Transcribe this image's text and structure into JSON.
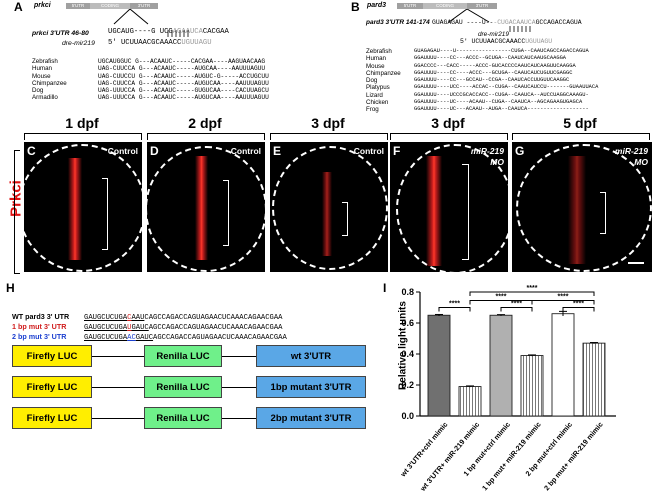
{
  "panel_A": {
    "letter": "A",
    "gene": "prkci",
    "bar_labels": [
      "5'UTR",
      "CODING",
      "3'UTR"
    ],
    "utr_label": "prkci 3'UTR 46-80",
    "utr_seq_1": "UGCAUG----G UCG",
    "utr_seq_2": "ACAAUCA",
    "utr_seq_3": "CACGAA",
    "mir_label": "dre-mir219",
    "mir_seq_1": "5' UCUUAACGCAAACC",
    "mir_seq_2": "UGUUAGU",
    "species": [
      {
        "name": "Zebrafish",
        "seq": "UGCAUGGUC G---ACAAUC-----CACGAA----AAGUAACAAG"
      },
      {
        "name": "Human",
        "seq": "UAG-CUUCCA G---ACAAUC-----AUGCAA----AAUUUAGUU"
      },
      {
        "name": "Mouse",
        "seq": "UAG-CUUCCU G---ACAAUC-----AUGUC-G-----ACCUGCUU"
      },
      {
        "name": "Chimpanzee",
        "seq": "UAG-CUUCCA G---ACAAUC-----AUGUCAA----AAUUUAGUU"
      },
      {
        "name": "Dog",
        "seq": "UAG-UUUCCA G---ACAAUC-----GUGUCAA----CACUUAGCU"
      },
      {
        "name": "Armadillo",
        "seq": "UAG-UUUCCA G---ACAAUC-----AUGUCAA----AAUUUAGUU"
      }
    ]
  },
  "panel_B": {
    "letter": "B",
    "gene": "pard3",
    "bar_labels": [
      "5'UTR",
      "CODING",
      "3'UTR"
    ],
    "utr_label": "pard3 3'UTR 141-174",
    "utr_seq_1": "GUAGAGAU ----U--",
    "utr_seq_2": "-CUGACAAUCA",
    "utr_seq_3": "GCCAGACCAGUA",
    "mir_label": "dre-mir219",
    "mir_seq_1": "5' UCUUAACGCAAACC",
    "mir_seq_2": "UGUUAGU",
    "species": [
      {
        "name": "Zebrafish",
        "seq": "GUAGAGAU----U-----------------CUGA--CAAUCAGCCAGACCAGUA"
      },
      {
        "name": "Human",
        "seq": "GGAUUUU----CC---ACCC--GCUGA--CAAUCAUCAAUGCAAGGA"
      },
      {
        "name": "Mouse",
        "seq": "GGACCCC---CACC-----ACCC-GUCACCCCAAUCAUCAAGUUCAAGGA"
      },
      {
        "name": "Chimpanzee",
        "seq": "GGAUUUU----CC----ACCC---GCUGA--CAAUCAUCUGUUCGAGGC"
      },
      {
        "name": "Dog",
        "seq": "GGAUUUU----CC---GCCAU--CCGA--CAAUCACCUUGUUCAAGGC"
      },
      {
        "name": "Platypus",
        "seq": "GGAUUUU----UCC----ACCAC--CUGA--CAAUCAUCCU-------GUAAUUACA"
      },
      {
        "name": "Lizard",
        "seq": "GGAUUUU----UCCCGCACCACC--CUGA--CAAUCA--AUCCUAGGCAAAGU-"
      },
      {
        "name": "Chicken",
        "seq": "GGAUUUU----UC----ACAAU--CUGA--CAAUCA--AGCAGAAGUGAGCA"
      },
      {
        "name": "Frog",
        "seq": "GGAUUUU----UC---ACAAU--AUGA--CAAUCA-------------------"
      }
    ]
  },
  "panels_row": {
    "row_label": "Prkci",
    "panels": [
      {
        "letter": "C",
        "dpf": "1 dpf",
        "label": "Control"
      },
      {
        "letter": "D",
        "dpf": "2 dpf",
        "label": "Control"
      },
      {
        "letter": "E",
        "dpf": "3 dpf",
        "label": "Control"
      },
      {
        "letter": "F",
        "dpf": "3 dpf",
        "label": "miR-219 MO"
      },
      {
        "letter": "G",
        "dpf": "5 dpf",
        "label": "miR-219 MO"
      }
    ]
  },
  "panel_H": {
    "letter": "H",
    "seq_rows": [
      {
        "label": "WT pard3 3' UTR",
        "seq_a": "GAUGCUCUGA",
        "seq_mut": "C",
        "seq_b": "AAU",
        "seq_rest": "CAGCCAGACCAGUAGAACUCAAACAGAACGAA",
        "color": "#000000"
      },
      {
        "label": "1 bp mut 3' UTR",
        "seq_a": "GAUGCUCUGA",
        "seq_mut": "U",
        "seq_b": "GAUC",
        "seq_rest": "AGCCAGACCAGUAGAACUCAAACAGAACGAA",
        "color": "#d01c1c"
      },
      {
        "label": "2 bp mut 3' UTR",
        "seq_a": "GAUGCUCUGA",
        "seq_mut": "AC",
        "seq_b": "GAUC",
        "seq_rest": "AGCCAGACCAGUAGAACUCAAACAGAACGAA",
        "color": "#1b3fd0"
      }
    ],
    "constructs": [
      {
        "firefly": "Firefly LUC",
        "renilla": "Renilla LUC",
        "utr": "wt 3'UTR"
      },
      {
        "firefly": "Firefly LUC",
        "renilla": "Renilla LUC",
        "utr": "1bp mutant 3'UTR"
      },
      {
        "firefly": "Firefly LUC",
        "renilla": "Renilla LUC",
        "utr": "2bp mutant 3'UTR"
      }
    ]
  },
  "panel_I": {
    "letter": "I",
    "significance": "****"
  },
  "chart_data": {
    "type": "bar",
    "ylabel": "Relative light units",
    "ylim": [
      0,
      0.8
    ],
    "yticks": [
      "0.0",
      "0.2",
      "0.4",
      "0.6",
      "0.8"
    ],
    "categories": [
      "wt 3'UTR+ctrl mimic",
      "wt 3'UTR+ miR-219 mimic",
      "1 bp mut+ctrl mimic",
      "1 bp mut+ miR-219 mimic",
      "2 bp mut+ctrl mimic",
      "2 bp mut+ miR-219 mimic"
    ],
    "values": [
      0.65,
      0.19,
      0.65,
      0.39,
      0.66,
      0.47
    ],
    "errors": [
      0.005,
      0.004,
      0.004,
      0.004,
      0.015,
      0.004
    ],
    "fills": [
      "#707070",
      "#707070",
      "#b0b0b0",
      "#b0b0b0",
      "#ffffff",
      "#ffffff"
    ],
    "hatched": [
      false,
      true,
      false,
      true,
      false,
      true
    ],
    "significance_pairs": [
      [
        0,
        1
      ],
      [
        2,
        3
      ],
      [
        4,
        5
      ],
      [
        1,
        3
      ],
      [
        1,
        5
      ],
      [
        3,
        5
      ]
    ]
  }
}
